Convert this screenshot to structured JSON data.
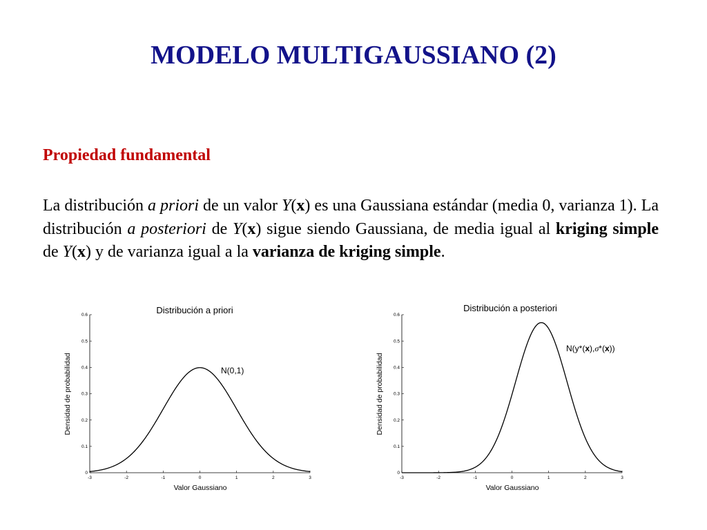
{
  "slide": {
    "title": "MODELO MULTIGAUSSIANO (2)",
    "subheading": "Propiedad fundamental",
    "paragraph": {
      "t1": "La distribución ",
      "t2": "a priori",
      "t3": " de un valor ",
      "t4": "Y",
      "t5": "(",
      "t6": "x",
      "t7": ") es una Gaussiana estándar (media 0, varianza 1). La distribución ",
      "t8": "a posteriori",
      "t9": " de ",
      "t10": "Y",
      "t11": "(",
      "t12": "x",
      "t13": ") sigue siendo Gaussiana, de media igual al ",
      "t14": "kriging simple",
      "t15": " de ",
      "t16": "Y",
      "t17": "(",
      "t18": "x",
      "t19": ") y de varianza igual a la ",
      "t20": "varianza de kriging simple",
      "t21": "."
    },
    "colors": {
      "title": "#13138a",
      "subheading": "#c00000",
      "curve": "#000000"
    }
  },
  "chart_data": [
    {
      "type": "line",
      "title": "Distribución a priori",
      "xlabel": "Valor Gaussiano",
      "ylabel": "Densidad de probabilidad",
      "xlim": [
        -3,
        3
      ],
      "ylim": [
        0,
        0.6
      ],
      "xticks": [
        "-3",
        "-2",
        "-1",
        "0",
        "1",
        "2",
        "3"
      ],
      "yticks": [
        "0",
        "0.1",
        "0.2",
        "0.3",
        "0.4",
        "0.5",
        "0.6"
      ],
      "annotation": "N(0,1)",
      "series": [
        {
          "distribution": "normal",
          "mean": 0,
          "sd": 1
        }
      ]
    },
    {
      "type": "line",
      "title": "Distribución a posteriori",
      "xlabel": "Valor Gaussiano",
      "ylabel": "Densidad de probabilidad",
      "xlim": [
        -3,
        3
      ],
      "ylim": [
        0,
        0.6
      ],
      "xticks": [
        "-3",
        "-2",
        "-1",
        "0",
        "1",
        "2",
        "3"
      ],
      "yticks": [
        "0",
        "0.1",
        "0.2",
        "0.3",
        "0.4",
        "0.5",
        "0.6"
      ],
      "annotation": {
        "a": "N(y*(",
        "b": "x",
        "c": "),",
        "d": "σ",
        "e": "*(",
        "f": "x",
        "g": "))"
      },
      "series": [
        {
          "distribution": "normal",
          "mean": 0.8,
          "sd": 0.7
        }
      ]
    }
  ]
}
